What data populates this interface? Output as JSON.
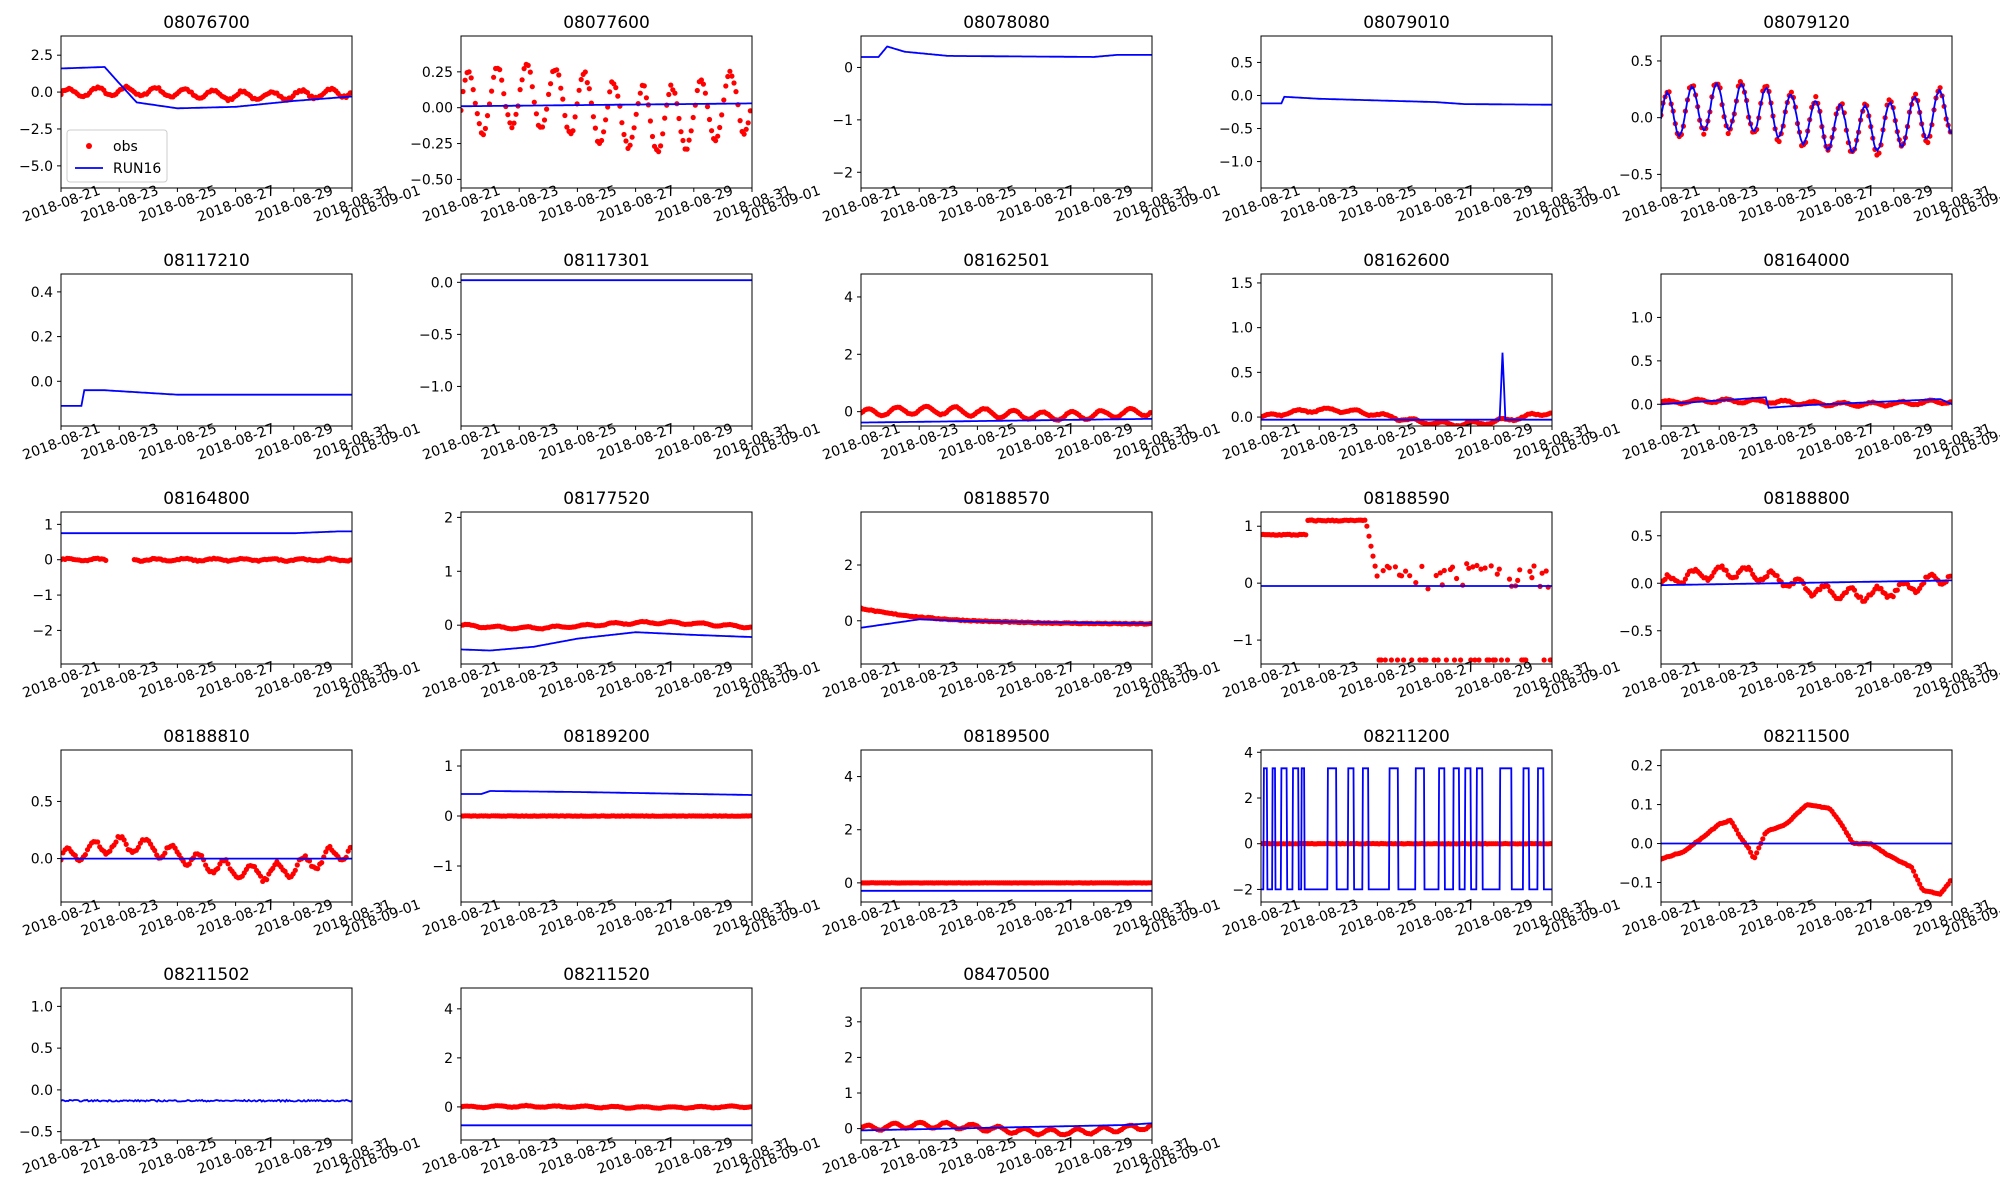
{
  "figure": {
    "x_tick_labels": [
      "2018-08-21",
      "2018-08-23",
      "2018-08-25",
      "2018-08-27",
      "2018-08-29",
      "2018-08-31",
      "2018-09-01"
    ],
    "legend": [
      {
        "label": "obs",
        "kind": "marker",
        "color": "#ff0000"
      },
      {
        "label": "RUN16",
        "kind": "line",
        "color": "#0000ff"
      }
    ],
    "colors": {
      "obs": "#ff0000",
      "run": "#0000ff"
    }
  },
  "chart_data": [
    {
      "type": "line",
      "title": "08076700",
      "ylim": [
        -6.5,
        3.8
      ],
      "yticks": [
        {
          "v": 2.5,
          "l": "2.5"
        },
        {
          "v": 0,
          "l": "0.0"
        },
        {
          "v": -2.5,
          "l": "−2.5"
        },
        {
          "v": -5,
          "l": "−5.0"
        }
      ],
      "obs": {
        "mode": "wave",
        "base": -0.1,
        "amp": 0.3,
        "period": 1.0,
        "trend": 0.15,
        "noise": 0.15
      },
      "run": [
        [
          0,
          1.6
        ],
        [
          1.5,
          1.7
        ],
        [
          2.0,
          0.6
        ],
        [
          2.6,
          -0.7
        ],
        [
          4,
          -1.1
        ],
        [
          6,
          -1.0
        ],
        [
          8,
          -0.6
        ],
        [
          10,
          -0.3
        ]
      ],
      "legend": true
    },
    {
      "type": "line",
      "title": "08077600",
      "ylim": [
        -0.56,
        0.5
      ],
      "yticks": [
        {
          "v": 0.25,
          "l": "0.25"
        },
        {
          "v": 0,
          "l": "0.00"
        },
        {
          "v": -0.25,
          "l": "−0.25"
        },
        {
          "v": -0.5,
          "l": "−0.50"
        }
      ],
      "obs": {
        "mode": "wave",
        "base": 0.0,
        "amp": 0.22,
        "period": 1.0,
        "trend": 0.08,
        "noise": 0.04
      },
      "run": [
        [
          0,
          0.01
        ],
        [
          10,
          0.03
        ]
      ]
    },
    {
      "type": "line",
      "title": "08078080",
      "ylim": [
        -2.3,
        0.6
      ],
      "yticks": [
        {
          "v": 0,
          "l": "0"
        },
        {
          "v": -1,
          "l": "−1"
        },
        {
          "v": -2,
          "l": "−2"
        }
      ],
      "obs": null,
      "run": [
        [
          0,
          0.2
        ],
        [
          0.6,
          0.2
        ],
        [
          0.9,
          0.4
        ],
        [
          1.5,
          0.3
        ],
        [
          3,
          0.22
        ],
        [
          8,
          0.2
        ],
        [
          8.8,
          0.24
        ],
        [
          10,
          0.24
        ]
      ]
    },
    {
      "type": "line",
      "title": "08079010",
      "ylim": [
        -1.4,
        0.9
      ],
      "yticks": [
        {
          "v": 0.5,
          "l": "0.5"
        },
        {
          "v": 0,
          "l": "0.0"
        },
        {
          "v": -0.5,
          "l": "−0.5"
        },
        {
          "v": -1,
          "l": "−1.0"
        }
      ],
      "obs": null,
      "run": [
        [
          0,
          -0.12
        ],
        [
          0.7,
          -0.12
        ],
        [
          0.8,
          -0.02
        ],
        [
          2,
          -0.05
        ],
        [
          6,
          -0.1
        ],
        [
          7,
          -0.13
        ],
        [
          10,
          -0.14
        ]
      ]
    },
    {
      "type": "line",
      "title": "08079120",
      "ylim": [
        -0.62,
        0.72
      ],
      "yticks": [
        {
          "v": 0.5,
          "l": "0.5"
        },
        {
          "v": 0,
          "l": "0.0"
        },
        {
          "v": -0.5,
          "l": "−0.5"
        }
      ],
      "obs": {
        "mode": "wave",
        "base": 0.0,
        "amp": 0.22,
        "period": 0.85,
        "trend": 0.1,
        "noise": 0.05
      },
      "run": "wave:0.0:0.2:0.85:0.1"
    },
    {
      "type": "line",
      "title": "08117210",
      "ylim": [
        -0.2,
        0.48
      ],
      "yticks": [
        {
          "v": 0.4,
          "l": "0.4"
        },
        {
          "v": 0.2,
          "l": "0.2"
        },
        {
          "v": 0,
          "l": "0.0"
        }
      ],
      "obs": null,
      "run": [
        [
          0,
          -0.11
        ],
        [
          0.7,
          -0.11
        ],
        [
          0.8,
          -0.04
        ],
        [
          1.5,
          -0.04
        ],
        [
          4,
          -0.06
        ],
        [
          10,
          -0.06
        ]
      ]
    },
    {
      "type": "line",
      "title": "08117301",
      "ylim": [
        -1.38,
        0.08
      ],
      "yticks": [
        {
          "v": 0,
          "l": "0.0"
        },
        {
          "v": -0.5,
          "l": "−0.5"
        },
        {
          "v": -1,
          "l": "−1.0"
        }
      ],
      "obs": null,
      "run": [
        [
          0,
          0.02
        ],
        [
          10,
          0.02
        ]
      ]
    },
    {
      "type": "line",
      "title": "08162501",
      "ylim": [
        -0.5,
        4.8
      ],
      "yticks": [
        {
          "v": 4,
          "l": "4"
        },
        {
          "v": 2,
          "l": "2"
        },
        {
          "v": 0,
          "l": "0"
        }
      ],
      "obs": {
        "mode": "wave",
        "base": -0.05,
        "amp": 0.14,
        "period": 1.0,
        "trend": 0.1,
        "noise": 0.03
      },
      "run": [
        [
          0,
          -0.38
        ],
        [
          10,
          -0.25
        ]
      ]
    },
    {
      "type": "line",
      "title": "08162600",
      "ylim": [
        -0.1,
        1.6
      ],
      "yticks": [
        {
          "v": 1.5,
          "l": "1.5"
        },
        {
          "v": 1,
          "l": "1.0"
        },
        {
          "v": 0.5,
          "l": "0.5"
        },
        {
          "v": 0,
          "l": "0.0"
        }
      ],
      "obs": {
        "mode": "wave",
        "base": 0.0,
        "amp": 0.02,
        "period": 1.0,
        "trend": 0.08,
        "noise": 0.01
      },
      "run": [
        [
          0,
          -0.03
        ],
        [
          8.2,
          -0.03
        ],
        [
          8.3,
          0.72
        ],
        [
          8.4,
          -0.03
        ],
        [
          10,
          -0.03
        ]
      ]
    },
    {
      "type": "line",
      "title": "08164000",
      "ylim": [
        -0.25,
        1.5
      ],
      "yticks": [
        {
          "v": 1,
          "l": "1.0"
        },
        {
          "v": 0.5,
          "l": "0.5"
        },
        {
          "v": 0,
          "l": "0.0"
        }
      ],
      "obs": {
        "mode": "wave",
        "base": 0.02,
        "amp": 0.02,
        "period": 1.0,
        "trend": 0.02,
        "noise": 0.01
      },
      "run": [
        [
          0,
          0.0
        ],
        [
          3.6,
          0.08
        ],
        [
          3.7,
          -0.04
        ],
        [
          5,
          -0.01
        ],
        [
          9.6,
          0.06
        ],
        [
          10,
          0.0
        ]
      ]
    },
    {
      "type": "line",
      "title": "08164800",
      "ylim": [
        -2.95,
        1.35
      ],
      "yticks": [
        {
          "v": 1,
          "l": "1"
        },
        {
          "v": 0,
          "l": "0"
        },
        {
          "v": -1,
          "l": "−1"
        },
        {
          "v": -2,
          "l": "−2"
        }
      ],
      "obs": {
        "mode": "gappy",
        "base": 0.0,
        "amp": 0.03,
        "period": 1.0,
        "trend": 0.0,
        "noise": 0.03,
        "gap": [
          1.6,
          2.5
        ]
      },
      "run": [
        [
          0,
          0.75
        ],
        [
          8,
          0.75
        ],
        [
          9.5,
          0.8
        ],
        [
          10,
          0.8
        ]
      ]
    },
    {
      "type": "line",
      "title": "08177520",
      "ylim": [
        -0.72,
        2.1
      ],
      "yticks": [
        {
          "v": 2,
          "l": "2"
        },
        {
          "v": 1,
          "l": "1"
        },
        {
          "v": 0,
          "l": "0"
        }
      ],
      "obs": {
        "mode": "wave",
        "base": 0.0,
        "amp": 0.02,
        "period": 1.0,
        "trend": -0.05,
        "noise": 0.01
      },
      "run": [
        [
          0,
          -0.45
        ],
        [
          1,
          -0.47
        ],
        [
          2.5,
          -0.4
        ],
        [
          4,
          -0.25
        ],
        [
          6,
          -0.13
        ],
        [
          8,
          -0.18
        ],
        [
          10,
          -0.22
        ]
      ]
    },
    {
      "type": "line",
      "title": "08188570",
      "ylim": [
        -1.55,
        3.9
      ],
      "yticks": [
        {
          "v": 2,
          "l": "2"
        },
        {
          "v": 0,
          "l": "0"
        }
      ],
      "obs": {
        "mode": "decay",
        "start": 0.45,
        "end": -0.12,
        "noise": 0.03
      },
      "run": [
        [
          0,
          -0.25
        ],
        [
          1,
          -0.1
        ],
        [
          2,
          0.05
        ],
        [
          4,
          -0.02
        ],
        [
          6,
          -0.05
        ],
        [
          10,
          -0.1
        ]
      ]
    },
    {
      "type": "line",
      "title": "08188590",
      "ylim": [
        -1.42,
        1.25
      ],
      "yticks": [
        {
          "v": 1,
          "l": "1"
        },
        {
          "v": 0,
          "l": "0"
        },
        {
          "v": -1,
          "l": "−1"
        }
      ],
      "obs": {
        "mode": "steps",
        "noise": 0.02
      },
      "run": [
        [
          0,
          -0.05
        ],
        [
          10,
          -0.05
        ]
      ]
    },
    {
      "type": "line",
      "title": "08188800",
      "ylim": [
        -0.85,
        0.75
      ],
      "yticks": [
        {
          "v": 0.5,
          "l": "0.5"
        },
        {
          "v": 0,
          "l": "0.0"
        },
        {
          "v": -0.5,
          "l": "−0.5"
        }
      ],
      "obs": {
        "mode": "wave",
        "base": 0.0,
        "amp": 0.06,
        "period": 0.9,
        "trend": 0.12,
        "noise": 0.04
      },
      "run": [
        [
          0,
          -0.02
        ],
        [
          10,
          0.03
        ]
      ]
    },
    {
      "type": "line",
      "title": "08188810",
      "ylim": [
        -0.38,
        0.95
      ],
      "yticks": [
        {
          "v": 0.5,
          "l": "0.5"
        },
        {
          "v": 0,
          "l": "0.0"
        }
      ],
      "obs": {
        "mode": "wave",
        "base": 0.0,
        "amp": 0.07,
        "period": 0.9,
        "trend": 0.12,
        "noise": 0.03
      },
      "run": [
        [
          0,
          0.0
        ],
        [
          10,
          0.0
        ]
      ]
    },
    {
      "type": "line",
      "title": "08189200",
      "ylim": [
        -1.72,
        1.32
      ],
      "yticks": [
        {
          "v": 1,
          "l": "1"
        },
        {
          "v": 0,
          "l": "0"
        },
        {
          "v": -1,
          "l": "−1"
        }
      ],
      "obs": {
        "mode": "flat",
        "base": 0.0,
        "noise": 0.01
      },
      "run": [
        [
          0,
          0.44
        ],
        [
          0.7,
          0.44
        ],
        [
          1,
          0.5
        ],
        [
          4,
          0.48
        ],
        [
          10,
          0.42
        ]
      ]
    },
    {
      "type": "line",
      "title": "08189500",
      "ylim": [
        -0.72,
        5.0
      ],
      "yticks": [
        {
          "v": 4,
          "l": "4"
        },
        {
          "v": 2,
          "l": "2"
        },
        {
          "v": 0,
          "l": "0"
        }
      ],
      "obs": {
        "mode": "flat",
        "base": 0.0,
        "noise": 0.01
      },
      "run": [
        [
          0,
          -0.3
        ],
        [
          10,
          -0.3
        ]
      ]
    },
    {
      "type": "line",
      "title": "08211200",
      "ylim": [
        -2.55,
        4.1
      ],
      "yticks": [
        {
          "v": 4,
          "l": "4"
        },
        {
          "v": 2,
          "l": "2"
        },
        {
          "v": 0,
          "l": "0"
        },
        {
          "v": -2,
          "l": "−2"
        }
      ],
      "obs": {
        "mode": "flat",
        "base": 0.0,
        "noise": 0.02
      },
      "run": "square"
    },
    {
      "type": "line",
      "title": "08211500",
      "ylim": [
        -0.15,
        0.24
      ],
      "yticks": [
        {
          "v": 0.2,
          "l": "0.2"
        },
        {
          "v": 0.1,
          "l": "0.1"
        },
        {
          "v": 0,
          "l": "0.0"
        },
        {
          "v": -0.1,
          "l": "−0.1"
        }
      ],
      "obs": {
        "mode": "path",
        "pts": [
          [
            0,
            -0.04
          ],
          [
            0.8,
            -0.02
          ],
          [
            1.5,
            0.02
          ],
          [
            2,
            0.05
          ],
          [
            2.4,
            0.06
          ],
          [
            2.7,
            0.02
          ],
          [
            3.0,
            -0.01
          ],
          [
            3.2,
            -0.04
          ],
          [
            3.6,
            0.03
          ],
          [
            4.3,
            0.05
          ],
          [
            5.0,
            0.1
          ],
          [
            5.8,
            0.09
          ],
          [
            6.2,
            0.05
          ],
          [
            6.6,
            0.0
          ],
          [
            7.2,
            0.0
          ],
          [
            7.8,
            -0.03
          ],
          [
            8.6,
            -0.06
          ],
          [
            9.0,
            -0.12
          ],
          [
            9.6,
            -0.13
          ],
          [
            10,
            -0.09
          ]
        ],
        "noise": 0.002
      },
      "run": [
        [
          0,
          0.0
        ],
        [
          10,
          0.0
        ]
      ]
    },
    {
      "type": "line",
      "title": "08211502",
      "ylim": [
        -0.6,
        1.22
      ],
      "yticks": [
        {
          "v": 1,
          "l": "1.0"
        },
        {
          "v": 0.5,
          "l": "0.5"
        },
        {
          "v": 0,
          "l": "0.0"
        },
        {
          "v": -0.5,
          "l": "−0.5"
        }
      ],
      "obs": null,
      "run": "noisy:-0.13:0.02"
    },
    {
      "type": "line",
      "title": "08211520",
      "ylim": [
        -1.35,
        4.85
      ],
      "yticks": [
        {
          "v": 4,
          "l": "4"
        },
        {
          "v": 2,
          "l": "2"
        },
        {
          "v": 0,
          "l": "0"
        }
      ],
      "obs": {
        "mode": "wave",
        "base": 0.0,
        "amp": 0.03,
        "period": 1.0,
        "trend": 0.02,
        "noise": 0.02
      },
      "run": [
        [
          0,
          -0.75
        ],
        [
          10,
          -0.75
        ]
      ]
    },
    {
      "type": "line",
      "title": "08470500",
      "ylim": [
        -0.32,
        3.95
      ],
      "yticks": [
        {
          "v": 3,
          "l": "3"
        },
        {
          "v": 2,
          "l": "2"
        },
        {
          "v": 1,
          "l": "1"
        },
        {
          "v": 0,
          "l": "0"
        }
      ],
      "obs": {
        "mode": "wave",
        "base": 0.0,
        "amp": 0.08,
        "period": 0.9,
        "trend": 0.1,
        "noise": 0.02
      },
      "run": [
        [
          0,
          -0.05
        ],
        [
          3,
          0.0
        ],
        [
          6,
          0.05
        ],
        [
          9,
          0.1
        ],
        [
          10,
          0.15
        ]
      ]
    }
  ]
}
